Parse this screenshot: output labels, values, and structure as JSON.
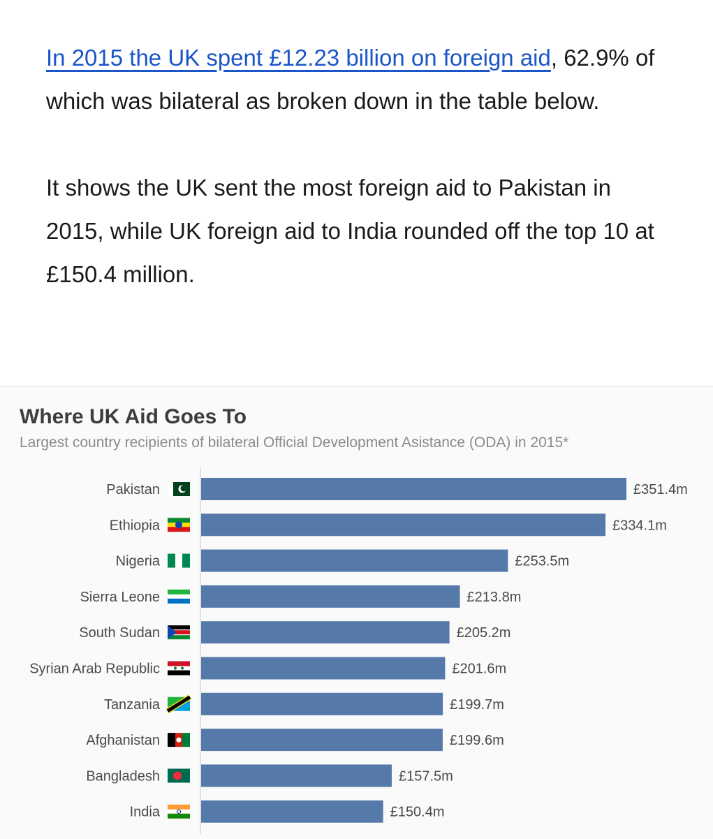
{
  "article": {
    "p1_link": "In 2015 the UK spent £12.23 billion on foreign aid",
    "p1_after_link": ",",
    "p1_rest": "62.9% of which was bilateral as broken down in the table below.",
    "p2": "It shows the UK sent the most foreign aid to Pakistan in 2015, while UK foreign aid to India rounded off the top 10 at £150.4 million."
  },
  "chart_data": {
    "type": "bar",
    "orientation": "horizontal",
    "title": "Where UK Aid Goes To",
    "subtitle": "Largest country recipients of bilateral Official Development Asistance (ODA) in 2015*",
    "categories": [
      "Pakistan",
      "Ethiopia",
      "Nigeria",
      "Sierra Leone",
      "South Sudan",
      "Syrian Arab Republic",
      "Tanzania",
      "Afghanistan",
      "Bangladesh",
      "India"
    ],
    "values": [
      351.4,
      334.1,
      253.5,
      213.8,
      205.2,
      201.6,
      199.7,
      199.6,
      157.5,
      150.4
    ],
    "value_labels": [
      "£351.4m",
      "£334.1m",
      "£253.5m",
      "£213.8m",
      "£205.2m",
      "£201.6m",
      "£199.7m",
      "£199.6m",
      "£157.5m",
      "£150.4m"
    ],
    "flags": [
      "pakistan-flag-icon",
      "ethiopia-flag-icon",
      "nigeria-flag-icon",
      "sierra-leone-flag-icon",
      "south-sudan-flag-icon",
      "syria-flag-icon",
      "tanzania-flag-icon",
      "afghanistan-flag-icon",
      "bangladesh-flag-icon",
      "india-flag-icon"
    ],
    "xlim": [
      0,
      351.4
    ],
    "bar_color": "#5579a8",
    "grid": false
  }
}
